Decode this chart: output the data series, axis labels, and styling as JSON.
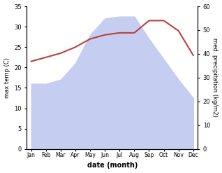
{
  "months": [
    "Jan",
    "Feb",
    "Mar",
    "Apr",
    "May",
    "Jun",
    "Jul",
    "Aug",
    "Sep",
    "Oct",
    "Nov",
    "Dec"
  ],
  "temp": [
    21.5,
    22.5,
    23.5,
    25.0,
    27.0,
    28.0,
    28.5,
    28.5,
    31.5,
    31.5,
    29.0,
    23.0
  ],
  "precip_in_temp_scale": [
    16,
    16,
    17,
    21,
    28,
    32,
    32.5,
    32.5,
    27,
    22,
    17,
    12.5
  ],
  "temp_color": "#b94040",
  "precip_fill_color": "#c5cdf0",
  "xlabel": "date (month)",
  "ylabel_left": "max temp (C)",
  "ylabel_right": "med. precipitation (kg/m2)",
  "ylim_left": [
    0,
    35
  ],
  "ylim_right": [
    0,
    60
  ],
  "yticks_left": [
    0,
    5,
    10,
    15,
    20,
    25,
    30,
    35
  ],
  "yticks_right": [
    0,
    10,
    20,
    30,
    40,
    50,
    60
  ],
  "figsize": [
    3.18,
    2.47
  ],
  "dpi": 100
}
